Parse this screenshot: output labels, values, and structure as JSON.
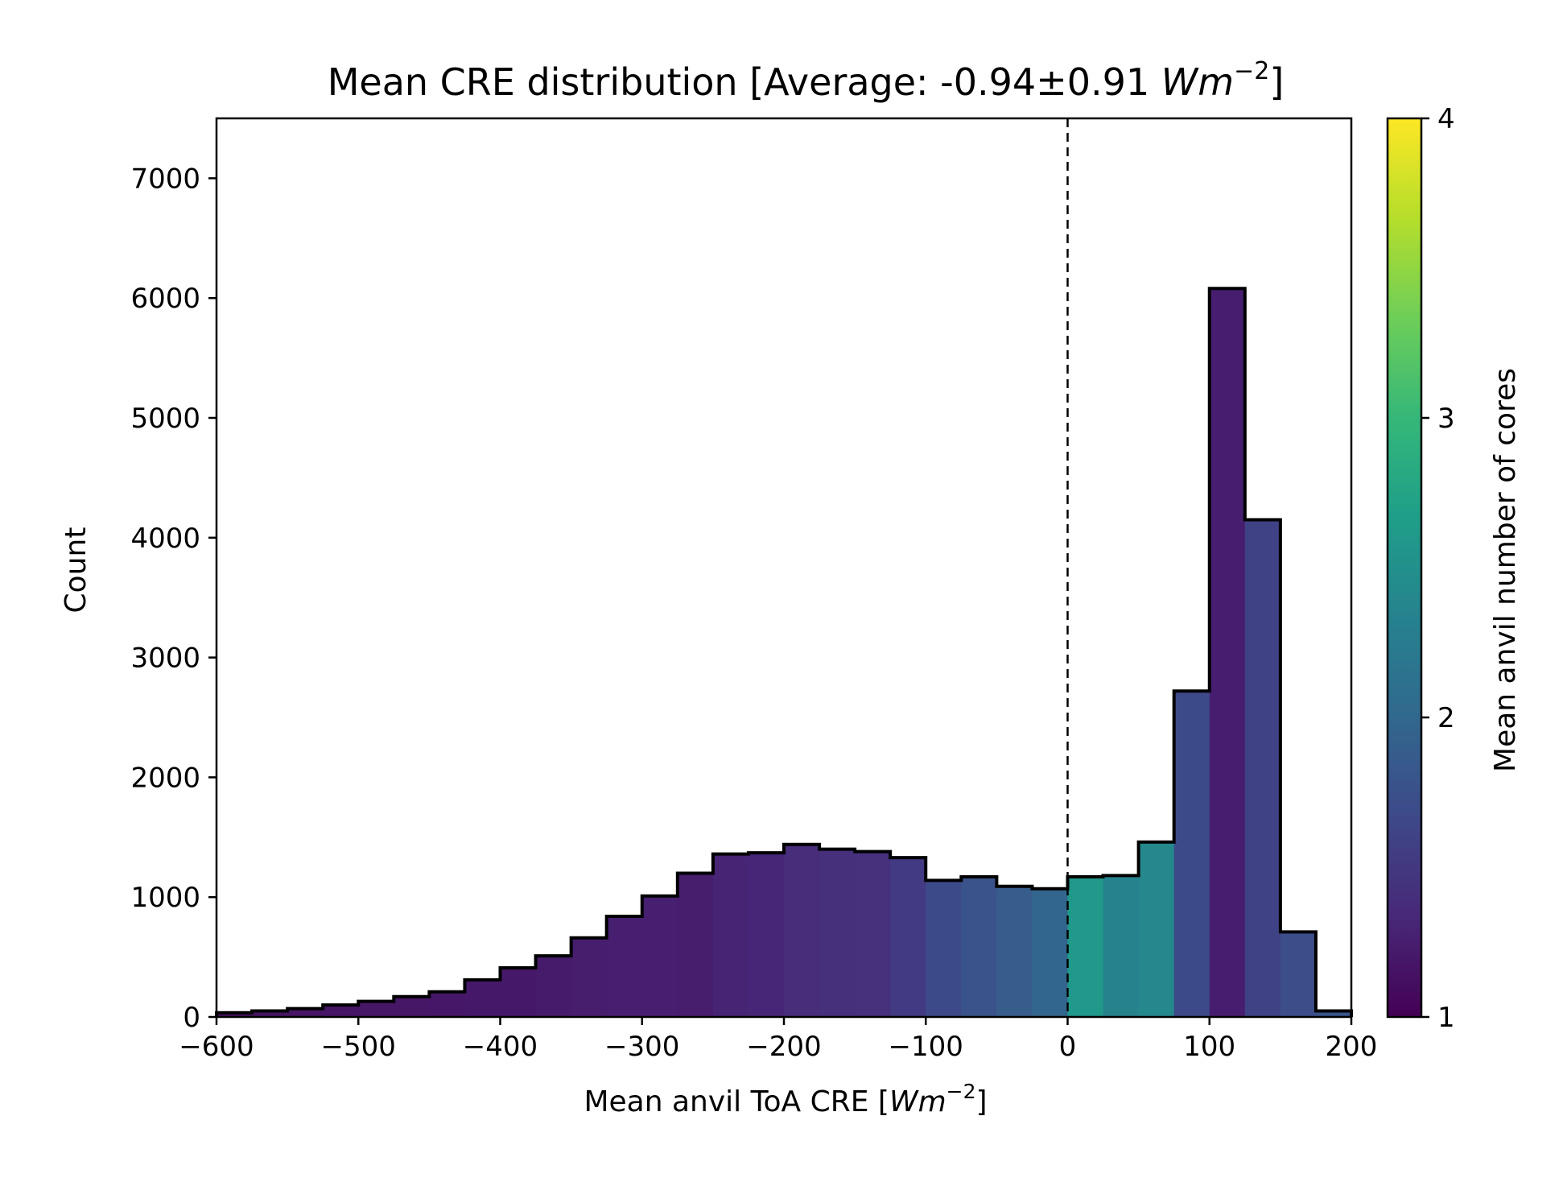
{
  "chart_data": {
    "type": "bar",
    "title": {
      "prefix": "Mean CRE distribution [Average: -0.94±0.91 ",
      "unit_base": "Wm",
      "unit_exp": "−2",
      "suffix": "]"
    },
    "xlabel": {
      "prefix": "Mean anvil ToA CRE [",
      "unit_base": "Wm",
      "unit_exp": "−2",
      "suffix": "]"
    },
    "ylabel": "Count",
    "xlim": [
      -600,
      200
    ],
    "ylim": [
      0,
      7500
    ],
    "xticks": [
      -600,
      -500,
      -400,
      -300,
      -200,
      -100,
      0,
      100,
      200
    ],
    "xtick_labels": [
      "−600",
      "−500",
      "−400",
      "−300",
      "−200",
      "−100",
      "0",
      "100",
      "200"
    ],
    "yticks": [
      0,
      1000,
      2000,
      3000,
      4000,
      5000,
      6000,
      7000
    ],
    "ytick_labels": [
      "0",
      "1000",
      "2000",
      "3000",
      "4000",
      "5000",
      "6000",
      "7000"
    ],
    "bin_edges": [
      -600,
      -575,
      -550,
      -525,
      -500,
      -475,
      -450,
      -425,
      -400,
      -375,
      -350,
      -325,
      -300,
      -275,
      -250,
      -225,
      -200,
      -175,
      -150,
      -125,
      -100,
      -75,
      -50,
      -25,
      0,
      25,
      50,
      75,
      100,
      125,
      150,
      175,
      200
    ],
    "counts": [
      35,
      50,
      70,
      100,
      130,
      170,
      210,
      310,
      410,
      510,
      660,
      840,
      1010,
      1200,
      1360,
      1370,
      1440,
      1400,
      1380,
      1330,
      1140,
      1170,
      1090,
      1070,
      1170,
      1180,
      1460,
      2720,
      6080,
      4150,
      710,
      50
    ],
    "mean_cores": [
      1.13,
      1.15,
      1.16,
      1.17,
      1.18,
      1.18,
      1.19,
      1.2,
      1.2,
      1.22,
      1.24,
      1.26,
      1.26,
      1.24,
      1.3,
      1.32,
      1.38,
      1.4,
      1.42,
      1.52,
      1.68,
      1.78,
      1.88,
      1.98,
      2.6,
      2.35,
      2.4,
      1.68,
      1.25,
      1.6,
      1.72,
      1.8
    ],
    "vline": {
      "x": 0,
      "style": "dashed"
    },
    "bar_edge_color": "#000000",
    "colorbar": {
      "label": "Mean anvil number of cores",
      "colormap": "viridis",
      "range": [
        1,
        4
      ],
      "ticks": [
        1,
        2,
        3,
        4
      ],
      "tick_labels": [
        "1",
        "2",
        "3",
        "4"
      ],
      "stops": [
        "#440154",
        "#482878",
        "#3e4989",
        "#31688e",
        "#26828e",
        "#1f9e89",
        "#35b779",
        "#6ece58",
        "#b5de2b",
        "#fde725"
      ]
    },
    "grid": false,
    "legend": "none"
  }
}
